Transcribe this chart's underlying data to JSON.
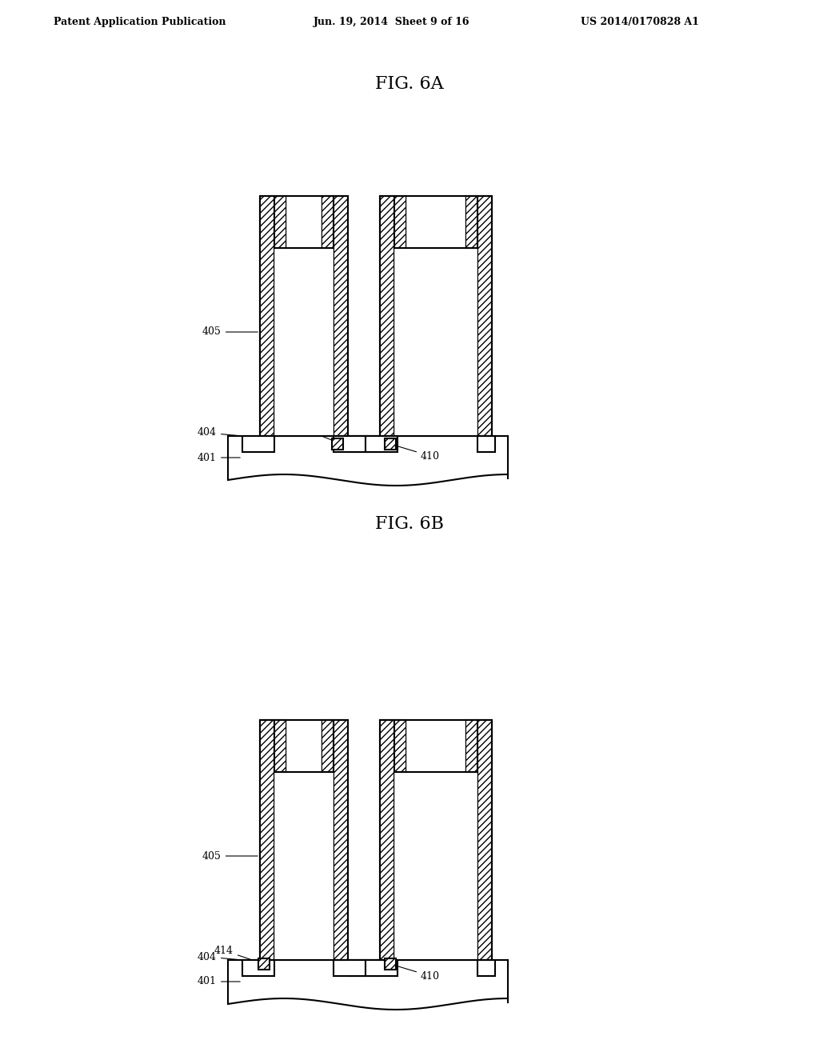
{
  "background_color": "#ffffff",
  "header_left": "Patent Application Publication",
  "header_center": "Jun. 19, 2014  Sheet 9 of 16",
  "header_right": "US 2014/0170828 A1",
  "fig6a_title": "FIG. 6A",
  "fig6b_title": "FIG. 6B",
  "label_color": "#000000",
  "line_color": "#000000"
}
